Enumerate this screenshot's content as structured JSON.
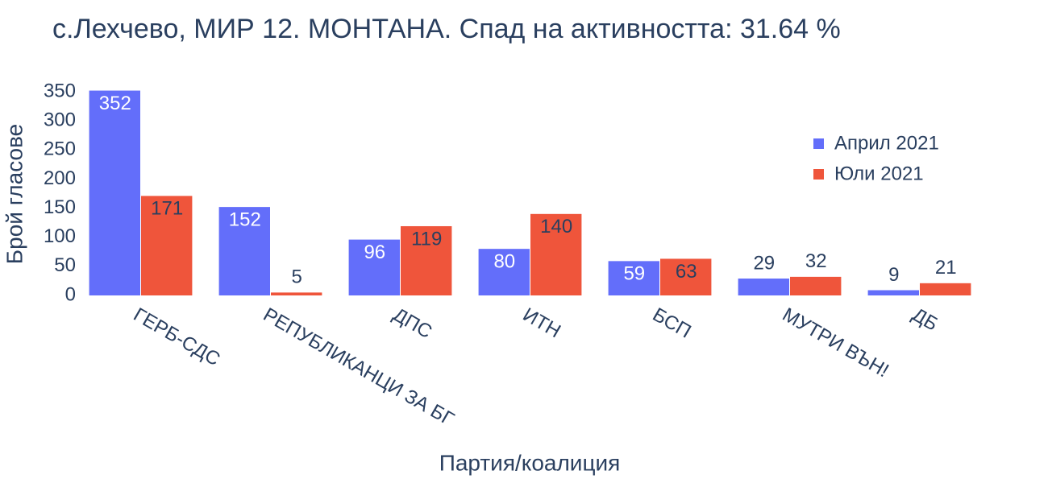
{
  "chart_data": {
    "type": "bar",
    "title": "с.Лехчево, МИР 12. МОНТАНА. Спад на активността: 31.64 %",
    "x_label": "Партия/коалиция",
    "y_label": "Брой гласове",
    "categories": [
      "ГЕРБ-СДС",
      "РЕПУБЛИКАНЦИ ЗА БГ",
      "ДПС",
      "ИТН",
      "БСП",
      "МУТРИ ВЪН!",
      "ДБ"
    ],
    "series": [
      {
        "name": "Април 2021",
        "color": "#636efa",
        "values": [
          352,
          152,
          96,
          80,
          59,
          29,
          9
        ]
      },
      {
        "name": "Юли 2021",
        "color": "#ef553b",
        "values": [
          171,
          5,
          119,
          140,
          63,
          32,
          21
        ]
      }
    ],
    "ylim": [
      0,
      350
    ],
    "yticks": [
      0,
      50,
      100,
      150,
      200,
      250,
      300,
      350
    ],
    "grid": false,
    "legend": "top-right"
  }
}
